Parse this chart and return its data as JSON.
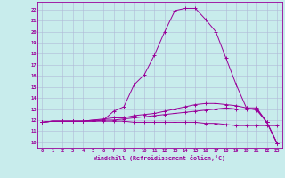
{
  "xlabel": "Windchill (Refroidissement éolien,°C)",
  "background_color": "#c8ecec",
  "line_color": "#990099",
  "grid_color": "#b0b8d8",
  "x_ticks": [
    0,
    1,
    2,
    3,
    4,
    5,
    6,
    7,
    8,
    9,
    10,
    11,
    12,
    13,
    14,
    15,
    16,
    17,
    18,
    19,
    20,
    21,
    22,
    23
  ],
  "y_ticks": [
    10,
    11,
    12,
    13,
    14,
    15,
    16,
    17,
    18,
    19,
    20,
    21,
    22
  ],
  "ylim": [
    9.5,
    22.7
  ],
  "xlim": [
    -0.5,
    23.5
  ],
  "series": [
    [
      11.8,
      11.9,
      11.9,
      11.9,
      11.9,
      11.9,
      11.9,
      11.9,
      11.9,
      11.8,
      11.8,
      11.8,
      11.8,
      11.8,
      11.8,
      11.8,
      11.7,
      11.7,
      11.6,
      11.5,
      11.5,
      11.5,
      11.5,
      11.5
    ],
    [
      11.8,
      11.9,
      11.9,
      11.9,
      11.9,
      11.9,
      12.0,
      12.0,
      12.1,
      12.2,
      12.3,
      12.4,
      12.5,
      12.6,
      12.7,
      12.8,
      12.9,
      13.0,
      13.1,
      13.0,
      13.0,
      13.0,
      11.8,
      9.9
    ],
    [
      11.8,
      11.9,
      11.9,
      11.9,
      11.9,
      12.0,
      12.0,
      12.8,
      13.2,
      15.2,
      16.1,
      17.9,
      20.0,
      21.9,
      22.1,
      22.1,
      21.1,
      20.0,
      17.6,
      15.2,
      13.1,
      13.1,
      11.8,
      9.9
    ],
    [
      11.8,
      11.9,
      11.9,
      11.9,
      11.9,
      12.0,
      12.1,
      12.2,
      12.2,
      12.4,
      12.5,
      12.6,
      12.8,
      13.0,
      13.2,
      13.4,
      13.5,
      13.5,
      13.4,
      13.3,
      13.1,
      12.9,
      11.8,
      9.9
    ]
  ]
}
